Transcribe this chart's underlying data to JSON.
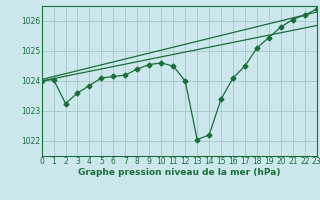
{
  "xlabel": "Graphe pression niveau de la mer (hPa)",
  "bg_color": "#cce8ec",
  "grid_color": "#aacccc",
  "line_color": "#1a6e3a",
  "xlim": [
    0,
    23
  ],
  "ylim": [
    1021.5,
    1026.5
  ],
  "yticks": [
    1022,
    1023,
    1024,
    1025,
    1026
  ],
  "xticks": [
    0,
    1,
    2,
    3,
    4,
    5,
    6,
    7,
    8,
    9,
    10,
    11,
    12,
    13,
    14,
    15,
    16,
    17,
    18,
    19,
    20,
    21,
    22,
    23
  ],
  "series1_x": [
    0,
    1,
    2,
    3,
    4,
    5,
    6,
    7,
    8,
    9,
    10,
    11,
    12,
    13,
    14,
    15,
    16,
    17,
    18,
    19,
    20,
    21,
    22,
    23
  ],
  "series1_y": [
    1024.0,
    1024.05,
    1023.25,
    1023.6,
    1023.85,
    1024.1,
    1024.15,
    1024.2,
    1024.4,
    1024.55,
    1024.6,
    1024.5,
    1024.0,
    1022.05,
    1022.2,
    1023.4,
    1024.1,
    1024.5,
    1025.1,
    1025.45,
    1025.8,
    1026.05,
    1026.2,
    1026.4
  ],
  "series2_x": [
    0,
    23
  ],
  "series2_y": [
    1024.0,
    1025.85
  ],
  "series3_x": [
    0,
    23
  ],
  "series3_y": [
    1024.05,
    1026.3
  ],
  "marker_size": 2.5,
  "linewidth": 0.9,
  "xlabel_fontsize": 6.5,
  "tick_fontsize": 5.5
}
